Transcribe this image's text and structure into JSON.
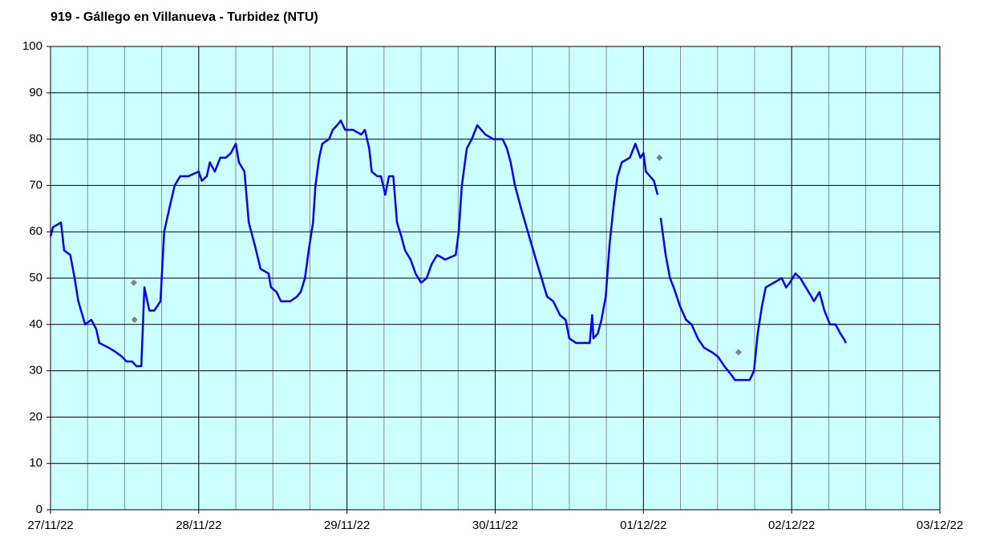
{
  "chart_data": {
    "type": "line",
    "title": "919 - Gállego en Villanueva - Turbidez (NTU)",
    "xlim": [
      0,
      144
    ],
    "xticks": [
      {
        "value": 0,
        "label": "27/11/22"
      },
      {
        "value": 24,
        "label": "28/11/22"
      },
      {
        "value": 48,
        "label": "29/11/22"
      },
      {
        "value": 72,
        "label": "30/11/22"
      },
      {
        "value": 96,
        "label": "01/12/22"
      },
      {
        "value": 120,
        "label": "02/12/22"
      },
      {
        "value": 144,
        "label": "03/12/22"
      }
    ],
    "xminor_per_major": 4,
    "ylim": [
      0,
      100
    ],
    "yticks": [
      0,
      10,
      20,
      30,
      40,
      50,
      60,
      70,
      80,
      90,
      100
    ],
    "grid": true,
    "background": "#ccffff",
    "series": [
      {
        "mode": "line",
        "color": "#0000ff",
        "x": [
          0,
          0.4,
          1.7,
          2.2,
          3.2,
          3.9,
          4.5,
          5.6,
          6.6,
          7.4,
          7.9,
          9.4,
          10.6,
          11.6,
          12.3,
          13.2,
          13.9,
          14.7,
          15.2,
          16.0,
          16.8,
          17.8,
          18.4,
          19.4,
          20.1,
          21.0,
          22.3,
          24.0,
          24.5,
          25.3,
          25.8,
          26.6,
          27.5,
          28.4,
          29.2,
          30.0,
          30.5,
          31.4,
          32.1,
          33.1,
          34.0,
          35.3,
          35.7,
          36.6,
          37.3,
          38.8,
          39.9,
          40.5,
          41.2,
          41.8,
          42.5,
          42.9,
          43.5,
          44.0,
          45.1,
          45.7,
          46.4,
          47.0,
          47.7,
          49.0,
          50.3,
          50.9,
          51.6,
          52.0,
          52.9,
          53.5,
          54.2,
          54.8,
          55.5,
          56.1,
          56.8,
          57.4,
          58.3,
          59.1,
          60.0,
          60.9,
          61.7,
          62.6,
          63.9,
          65.6,
          66.1,
          66.6,
          67.4,
          68.2,
          69.1,
          70.4,
          71.7,
          72.6,
          73.2,
          73.9,
          74.5,
          75.2,
          76.2,
          77.5,
          78.6,
          79.5,
          80.4,
          81.4,
          82.5,
          83.4,
          84.0,
          85.1,
          87.3,
          87.7,
          87.9,
          88.6,
          89.2,
          89.9,
          90.5,
          91.2,
          91.8,
          92.5,
          93.8,
          94.7,
          95.5,
          96.0,
          96.4,
          97.7,
          98.3,
          98.5,
          98.8,
          99.1,
          99.6,
          100.3,
          100.9,
          101.9,
          102.9,
          103.8,
          104.8,
          105.8,
          107.1,
          108.1,
          109.1,
          110.3,
          110.8,
          111.9,
          113.2,
          113.9,
          114.5,
          115.2,
          115.8,
          117.1,
          118.4,
          119.1,
          119.7,
          120.6,
          121.4,
          122.3,
          123.2,
          123.6,
          124.5,
          125.3,
          126.2,
          127.1,
          127.9,
          128.4,
          128.8
        ],
        "values": [
          59,
          61,
          62,
          56,
          55,
          50,
          45,
          40,
          41,
          39,
          36,
          35,
          34,
          33,
          32,
          32,
          31,
          31,
          48,
          43,
          43,
          45,
          60,
          66,
          70,
          72,
          72,
          73,
          71,
          72,
          75,
          73,
          76,
          76,
          77,
          79,
          75,
          73,
          62,
          57,
          52,
          51,
          48,
          47,
          45,
          45,
          46,
          47,
          50,
          56,
          62,
          70,
          76,
          79,
          80,
          82,
          83,
          84,
          82,
          82,
          81,
          82,
          78,
          73,
          72,
          72,
          68,
          72,
          72,
          62,
          59,
          56,
          54,
          51,
          49,
          50,
          53,
          55,
          54,
          55,
          60,
          70,
          78,
          80,
          83,
          81,
          80,
          80,
          80,
          78,
          75,
          70,
          65,
          59,
          54,
          50,
          46,
          45,
          42,
          41,
          37,
          36,
          36,
          42,
          37,
          38,
          41,
          46,
          57,
          66,
          72,
          75,
          76,
          79,
          76,
          77,
          73,
          71,
          68,
          null,
          63,
          60,
          55,
          50,
          48,
          44,
          41,
          40,
          37,
          35,
          34,
          33,
          31,
          29,
          28,
          28,
          28,
          30,
          38,
          44,
          48,
          49,
          50,
          48,
          49,
          51,
          50,
          48,
          46,
          45,
          47,
          43,
          40,
          40,
          38,
          37,
          36
        ]
      },
      {
        "mode": "points",
        "color": "#808080",
        "x": [
          13.5,
          13.6,
          98.6,
          111.4
        ],
        "values": [
          49,
          41,
          76,
          34
        ]
      }
    ]
  }
}
